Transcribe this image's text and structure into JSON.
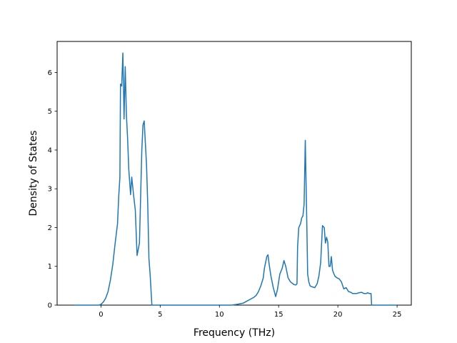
{
  "chart_data": {
    "type": "line",
    "title": "",
    "xlabel": "Frequency (THz)",
    "ylabel": "Density of States",
    "xlim": [
      -3.7,
      26.2
    ],
    "ylim": [
      0,
      6.8
    ],
    "x_ticks": [
      0,
      5,
      10,
      15,
      20,
      25
    ],
    "x_tick_labels": [
      "0",
      "5",
      "10",
      "15",
      "20",
      "25"
    ],
    "y_ticks": [
      0,
      1,
      2,
      3,
      4,
      5,
      6
    ],
    "y_tick_labels": [
      "0",
      "1",
      "2",
      "3",
      "4",
      "5",
      "6"
    ],
    "grid": false,
    "line_color": "#1f77b4",
    "series": [
      {
        "x": [
          -2.3,
          -0.2,
          0.0,
          0.2,
          0.4,
          0.6,
          0.8,
          1.0,
          1.2,
          1.4,
          1.5,
          1.6,
          1.65,
          1.75,
          1.85,
          1.95,
          2.05,
          2.15,
          2.25,
          2.35,
          2.5,
          2.6,
          2.75,
          2.9,
          3.05,
          3.25,
          3.45,
          3.55,
          3.65,
          3.85,
          3.95,
          4.05,
          4.15,
          4.3,
          4.45,
          4.5,
          6.0,
          8.0,
          10.0,
          11.0,
          11.5,
          12.0,
          12.3,
          12.6,
          12.9,
          13.1,
          13.3,
          13.5,
          13.7,
          13.8,
          13.9,
          14.0,
          14.1,
          14.2,
          14.35,
          14.55,
          14.75,
          14.9,
          15.1,
          15.3,
          15.45,
          15.6,
          15.8,
          16.0,
          16.3,
          16.45,
          16.55,
          16.6,
          16.7,
          16.85,
          16.95,
          17.05,
          17.15,
          17.25,
          17.35,
          17.45,
          17.55,
          17.65,
          17.75,
          17.85,
          18.05,
          18.25,
          18.4,
          18.55,
          18.7,
          18.85,
          18.95,
          19.05,
          19.15,
          19.25,
          19.35,
          19.45,
          19.55,
          19.65,
          19.75,
          19.85,
          19.95,
          20.1,
          20.3,
          20.5,
          20.7,
          20.9,
          21.1,
          21.25,
          21.4,
          21.5,
          21.6,
          21.8,
          22.0,
          22.2,
          22.4,
          22.5,
          22.65,
          22.8,
          22.85,
          23.0,
          25.0
        ],
        "y": [
          0.0,
          0.0,
          0.02,
          0.08,
          0.18,
          0.35,
          0.65,
          1.05,
          1.6,
          2.1,
          2.8,
          3.3,
          5.7,
          5.65,
          6.5,
          4.8,
          6.15,
          4.9,
          4.3,
          3.5,
          2.85,
          3.3,
          2.85,
          2.45,
          1.28,
          1.6,
          4.0,
          4.65,
          4.75,
          3.6,
          2.6,
          1.2,
          0.8,
          0.0,
          0.0,
          0.0,
          0.0,
          0.0,
          0.0,
          0.0,
          0.02,
          0.05,
          0.1,
          0.15,
          0.2,
          0.25,
          0.35,
          0.5,
          0.7,
          0.95,
          1.1,
          1.25,
          1.3,
          1.05,
          0.75,
          0.45,
          0.22,
          0.4,
          0.8,
          0.95,
          1.15,
          1.0,
          0.7,
          0.6,
          0.53,
          0.52,
          0.55,
          1.5,
          2.0,
          2.1,
          2.25,
          2.3,
          2.6,
          4.25,
          2.6,
          0.8,
          0.6,
          0.5,
          0.48,
          0.47,
          0.45,
          0.55,
          0.75,
          1.1,
          2.05,
          2.0,
          1.6,
          1.75,
          1.62,
          1.0,
          1.0,
          1.25,
          0.9,
          0.82,
          0.75,
          0.72,
          0.7,
          0.68,
          0.6,
          0.42,
          0.45,
          0.35,
          0.33,
          0.3,
          0.3,
          0.3,
          0.3,
          0.32,
          0.33,
          0.3,
          0.3,
          0.32,
          0.3,
          0.3,
          0.0,
          0.0,
          0.0
        ]
      }
    ]
  }
}
